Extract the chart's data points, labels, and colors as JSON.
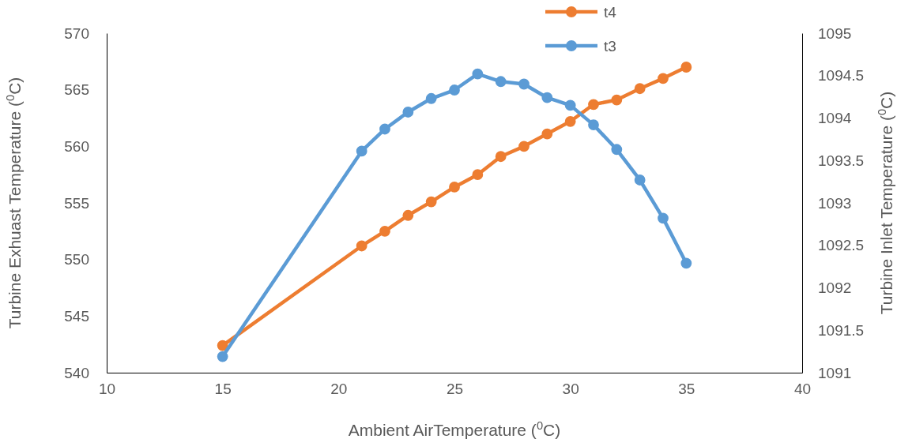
{
  "chart_data": {
    "type": "line",
    "xlabel": "Ambient AirTemperature ($^{0}$C)",
    "ylabel": "Turbine Exhuast Temperature ($^{0}$C)",
    "y2label": "Turbine Inlet Temperature ($^{0}$C)",
    "x": [
      15,
      21,
      22,
      23,
      24,
      25,
      26,
      27,
      28,
      29,
      30,
      31,
      32,
      33,
      34,
      35
    ],
    "series": [
      {
        "name": "t4",
        "color": "#ed7d31",
        "values": [
          542.4,
          551.2,
          552.5,
          553.9,
          555.1,
          556.4,
          557.5,
          559.1,
          560.0,
          561.1,
          562.2,
          563.7,
          564.1,
          565.1,
          566.0,
          567.0
        ]
      },
      {
        "name": "t3",
        "color": "#5b9bd5",
        "axis": "y2",
        "values": [
          1091.19,
          1093.61,
          1093.87,
          1094.07,
          1094.23,
          1094.33,
          1094.52,
          1094.43,
          1094.4,
          1094.24,
          1094.15,
          1093.92,
          1093.63,
          1093.27,
          1092.82,
          1092.29
        ]
      }
    ],
    "xlim": [
      10,
      40
    ],
    "xticks": [
      10,
      15,
      20,
      25,
      30,
      35,
      40
    ],
    "ylim": [
      540,
      570
    ],
    "yticks": [
      540,
      545,
      550,
      555,
      560,
      565,
      570
    ],
    "y2lim": [
      1091,
      1095
    ],
    "y2ticks": [
      1091,
      1091.5,
      1092,
      1092.5,
      1093,
      1093.5,
      1094,
      1094.5,
      1095
    ],
    "grid": false,
    "legend": "top",
    "marker": "circle",
    "line_style": "solid"
  }
}
